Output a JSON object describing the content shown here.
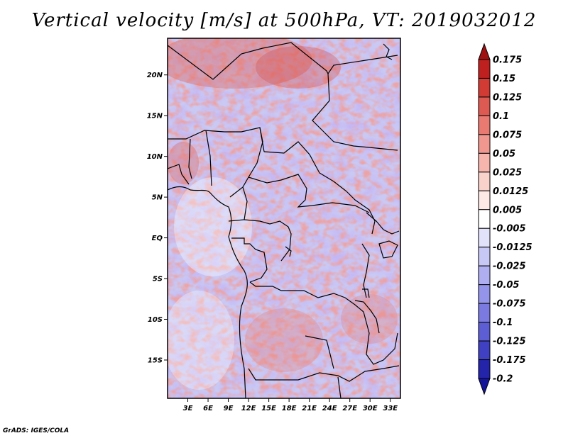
{
  "title": "Vertical velocity [m/s] at 500hPa, VT: 2019032012",
  "credit": "GrADS: IGES/COLA",
  "map": {
    "lat_labels": [
      "20N",
      "15N",
      "10N",
      "5N",
      "EQ",
      "5S",
      "10S",
      "15S"
    ],
    "lon_labels": [
      "3E",
      "6E",
      "9E",
      "12E",
      "15E",
      "18E",
      "21E",
      "24E",
      "27E",
      "30E",
      "33E"
    ],
    "lat_values": [
      20,
      15,
      10,
      5,
      0,
      -5,
      -10,
      -15
    ],
    "lon_values": [
      3,
      6,
      9,
      12,
      15,
      18,
      21,
      24,
      27,
      30,
      33
    ],
    "lon_range": [
      0,
      34.5
    ],
    "lat_range": [
      -19.7,
      24.5
    ],
    "field": "vertical velocity at 500hPa (m/s)"
  },
  "colorbar": {
    "labels": [
      "0.175",
      "0.15",
      "0.125",
      "0.1",
      "0.075",
      "0.05",
      "0.025",
      "0.0125",
      "0.005",
      "-0.005",
      "-0.0125",
      "-0.025",
      "-0.05",
      "-0.075",
      "-0.1",
      "-0.125",
      "-0.175",
      "-0.2"
    ],
    "colors": [
      "#a01010",
      "#be2020",
      "#d23a34",
      "#dd5a52",
      "#e87a72",
      "#f09890",
      "#f6b6ae",
      "#fad2cc",
      "#fde9e6",
      "#ffffff",
      "#e2e2fb",
      "#c8c8f6",
      "#aeaef0",
      "#9494ea",
      "#7a7ae0",
      "#5e5ed4",
      "#4040c2",
      "#2424aa",
      "#14149a"
    ]
  }
}
